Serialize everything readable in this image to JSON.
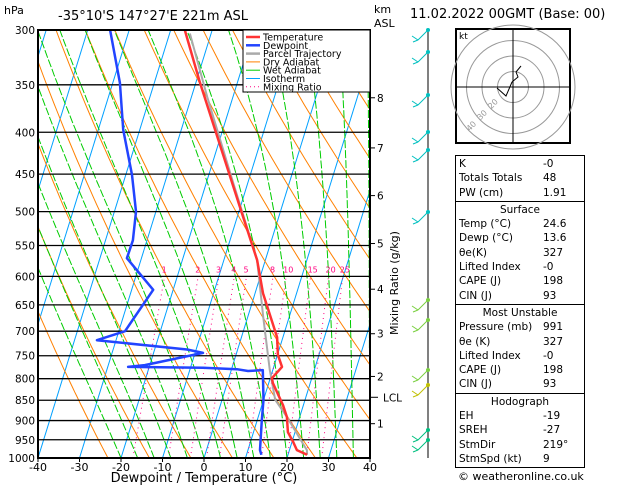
{
  "header": {
    "pressure_unit": "hPa",
    "location": "-35°10'S 147°27'E 221m ASL",
    "km_unit": "km",
    "asl_unit": "ASL",
    "datetime": "11.02.2022 00GMT (Base: 00)"
  },
  "legend": [
    {
      "label": "Temperature",
      "color": "#ff3333"
    },
    {
      "label": "Dewpoint",
      "color": "#2244ff"
    },
    {
      "label": "Parcel Trajectory",
      "color": "#aaaaaa"
    },
    {
      "label": "Dry Adiabat",
      "color": "#ff8000"
    },
    {
      "label": "Wet Adiabat",
      "color": "#00cc00"
    },
    {
      "label": "Isotherm",
      "color": "#00a0ff"
    },
    {
      "label": "Mixing Ratio",
      "color": "#ff0080"
    }
  ],
  "chart_data": {
    "type": "line",
    "subtype": "skew-T log-P",
    "xlabel": "Dewpoint / Temperature (°C)",
    "ylabel": "hPa",
    "right_label": "Mixing Ratio (g/kg)",
    "xlim": [
      -40,
      40
    ],
    "ylim": [
      1000,
      300
    ],
    "y_scale": "log",
    "x_ticks": [
      "-40",
      "-30",
      "-20",
      "-10",
      "0",
      "10",
      "20",
      "30",
      "40"
    ],
    "pressure_levels": [
      "300",
      "350",
      "400",
      "450",
      "500",
      "550",
      "600",
      "650",
      "700",
      "750",
      "800",
      "850",
      "900",
      "950",
      "1000"
    ],
    "km_levels": [
      {
        "label": "1",
        "p": 908
      },
      {
        "label": "2",
        "p": 795
      },
      {
        "label": "3",
        "p": 705
      },
      {
        "label": "4",
        "p": 622
      },
      {
        "label": "5",
        "p": 547
      },
      {
        "label": "6",
        "p": 478
      },
      {
        "label": "7",
        "p": 418
      },
      {
        "label": "8",
        "p": 363
      }
    ],
    "lcl": {
      "label": "LCL",
      "p": 843
    },
    "mixing_ratio_labels": [
      "1",
      "2",
      "3",
      "4",
      "5",
      "8",
      "10",
      "15",
      "20",
      "25"
    ],
    "series": [
      {
        "name": "Temperature",
        "color": "#ff3333",
        "points": [
          [
            991,
            24.6
          ],
          [
            978,
            21.8
          ],
          [
            956,
            20.3
          ],
          [
            930,
            18.3
          ],
          [
            891,
            16.9
          ],
          [
            862,
            15.1
          ],
          [
            810,
            11.0
          ],
          [
            799,
            10.4
          ],
          [
            774,
            12.0
          ],
          [
            748,
            10.1
          ],
          [
            712,
            8.6
          ],
          [
            629,
            1.9
          ],
          [
            573,
            -2.0
          ],
          [
            500,
            -9.4
          ],
          [
            348,
            -29.0
          ],
          [
            300,
            -36.6
          ]
        ]
      },
      {
        "name": "Dewpoint",
        "color": "#2244ff",
        "points": [
          [
            991,
            13.6
          ],
          [
            978,
            12.9
          ],
          [
            899,
            11.1
          ],
          [
            849,
            10.0
          ],
          [
            781,
            7.6
          ],
          [
            783,
            4.1
          ],
          [
            779,
            1.3
          ],
          [
            776,
            -7.0
          ],
          [
            774,
            -25.1
          ],
          [
            770,
            -21.2
          ],
          [
            744,
            -8.1
          ],
          [
            737,
            -12.2
          ],
          [
            718,
            -34.6
          ],
          [
            700,
            -28.5
          ],
          [
            623,
            -24.8
          ],
          [
            570,
            -33.5
          ],
          [
            542,
            -33.4
          ],
          [
            500,
            -34.8
          ],
          [
            451,
            -38.5
          ],
          [
            397,
            -44.0
          ],
          [
            348,
            -48.3
          ],
          [
            300,
            -54.6
          ]
        ]
      },
      {
        "name": "Parcel Trajectory",
        "color": "#aaaaaa",
        "points": [
          [
            991,
            24.6
          ],
          [
            978,
            24.2
          ],
          [
            891,
            16.9
          ],
          [
            849,
            12.8
          ],
          [
            781,
            9.3
          ],
          [
            672,
            3.7
          ],
          [
            573,
            -2.0
          ],
          [
            457,
            -14.0
          ],
          [
            362,
            -26.2
          ],
          [
            303,
            -35.1
          ]
        ]
      }
    ]
  },
  "hodograph": {
    "unit": "kt",
    "ring_labels": [
      "10",
      "20",
      "30",
      "40"
    ]
  },
  "indices": {
    "rows": [
      {
        "label": "K",
        "value": "-0"
      },
      {
        "label": "Totals Totals",
        "value": "48"
      },
      {
        "label": "PW (cm)",
        "value": "1.91"
      }
    ]
  },
  "surface": {
    "title": "Surface",
    "rows": [
      {
        "label": "Temp (°C)",
        "value": "24.6"
      },
      {
        "label": "Dewp (°C)",
        "value": "13.6"
      },
      {
        "label": "θe(K)",
        "value": "327"
      },
      {
        "label": "Lifted Index",
        "value": "-0"
      },
      {
        "label": "CAPE (J)",
        "value": "198"
      },
      {
        "label": "CIN (J)",
        "value": "93"
      }
    ]
  },
  "most_unstable": {
    "title": "Most Unstable",
    "rows": [
      {
        "label": "Pressure (mb)",
        "value": "991"
      },
      {
        "label": "θe (K)",
        "value": "327"
      },
      {
        "label": "Lifted Index",
        "value": "-0"
      },
      {
        "label": "CAPE (J)",
        "value": "198"
      },
      {
        "label": "CIN (J)",
        "value": "93"
      }
    ]
  },
  "hodograph_table": {
    "title": "Hodograph",
    "rows": [
      {
        "label": "EH",
        "value": "-19"
      },
      {
        "label": "SREH",
        "value": "-27"
      },
      {
        "label": "StmDir",
        "value": "219°"
      },
      {
        "label": "StmSpd (kt)",
        "value": "9"
      }
    ]
  },
  "copyright": "© weatheronline.co.uk"
}
